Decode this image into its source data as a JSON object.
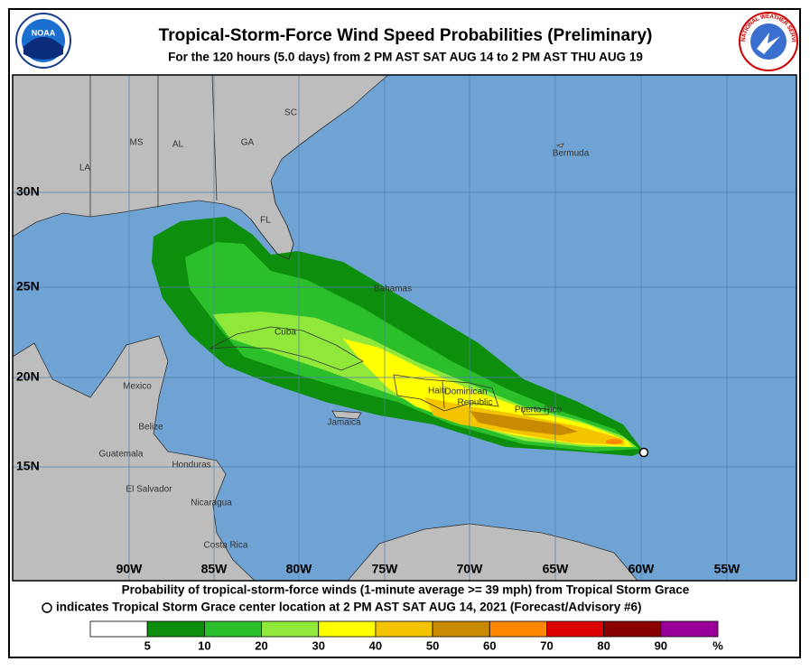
{
  "header": {
    "title": "Tropical-Storm-Force Wind Speed Probabilities (Preliminary)",
    "subtitle": "For the 120 hours (5.0 days) from 2 PM AST SAT AUG 14 to 2 PM AST THU AUG 19"
  },
  "logos": {
    "noaa": "NOAA",
    "nws": "NATIONAL WEATHER SERVICE"
  },
  "map": {
    "latitude_labels": [
      "30N",
      "25N",
      "20N",
      "15N"
    ],
    "longitude_labels": [
      "90W",
      "85W",
      "80W",
      "75W",
      "70W",
      "65W",
      "60W",
      "55W"
    ],
    "place_labels": [
      "MS",
      "AL",
      "GA",
      "SC",
      "LA",
      "FL",
      "Bermuda",
      "Bahamas",
      "Cuba",
      "Mexico",
      "Belize",
      "Guatemala",
      "Honduras",
      "El Salvador",
      "Nicaragua",
      "Costa Rica",
      "Jamaica",
      "Haiti",
      "Dominican",
      "Republic",
      "Puerto Rico"
    ]
  },
  "caption": {
    "line1": "Probability of tropical-storm-force winds (1-minute average >= 39 mph) from Tropical Storm Grace",
    "line2": "indicates Tropical Storm Grace center location at 2 PM AST SAT AUG 14, 2021 (Forecast/Advisory #6)"
  },
  "legend": {
    "colors": [
      "#ffffff",
      "#0d8f0d",
      "#2cbf2c",
      "#8fe83a",
      "#ffff00",
      "#f5c400",
      "#c88a00",
      "#ff8800",
      "#dd0000",
      "#880000",
      "#990099"
    ],
    "ticks": [
      5,
      10,
      20,
      30,
      40,
      50,
      60,
      70,
      80,
      90
    ],
    "unit": "%"
  }
}
